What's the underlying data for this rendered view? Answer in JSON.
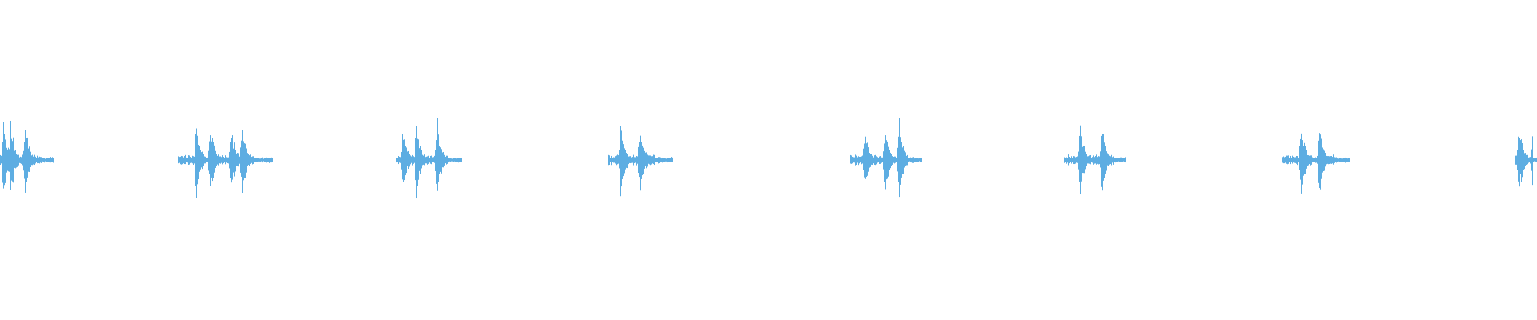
{
  "waveform": {
    "color": "#5dade2",
    "background": "#ffffff",
    "burst_count": 8
  }
}
